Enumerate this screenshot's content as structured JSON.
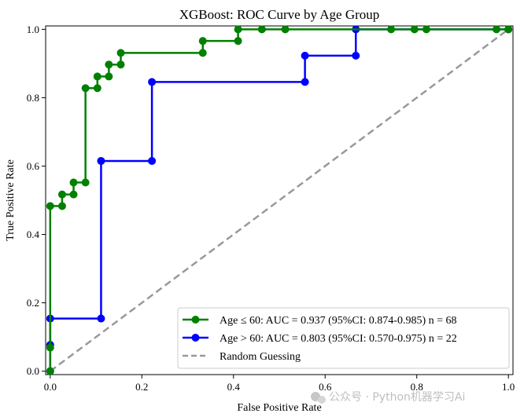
{
  "chart_data": {
    "type": "line",
    "title": "XGBoost: ROC Curve by Age Group",
    "xlabel": "False Positive Rate",
    "ylabel": "True Positive Rate",
    "xlim": [
      -0.01,
      1.01
    ],
    "ylim": [
      -0.01,
      1.01
    ],
    "xticks": [
      0.0,
      0.2,
      0.4,
      0.6,
      0.8,
      1.0
    ],
    "xtick_labels": [
      "0.0",
      "0.2",
      "0.4",
      "0.6",
      "0.8",
      "1.0"
    ],
    "yticks": [
      0.0,
      0.2,
      0.4,
      0.6,
      0.8,
      1.0
    ],
    "ytick_labels": [
      "0.0",
      "0.2",
      "0.4",
      "0.6",
      "0.8",
      "1.0"
    ],
    "legend_position": "bottom-right",
    "series": [
      {
        "name": "Age ≤ 60: AUC = 0.937 (95%CI: 0.874-0.985) n = 68",
        "color": "#008000",
        "marker": "circle",
        "fpr": [
          0.0,
          0.0,
          0.0,
          0.026,
          0.026,
          0.051,
          0.051,
          0.077,
          0.077,
          0.103,
          0.103,
          0.128,
          0.128,
          0.154,
          0.154,
          0.333,
          0.333,
          0.41,
          0.41,
          0.462,
          0.513,
          0.744,
          0.795,
          0.821,
          0.974,
          1.0
        ],
        "tpr": [
          0.0,
          0.069,
          0.483,
          0.483,
          0.517,
          0.517,
          0.552,
          0.552,
          0.828,
          0.828,
          0.862,
          0.862,
          0.897,
          0.897,
          0.931,
          0.931,
          0.966,
          0.966,
          1.0,
          1.0,
          1.0,
          1.0,
          1.0,
          1.0,
          1.0,
          1.0
        ]
      },
      {
        "name": "Age > 60: AUC = 0.803 (95%CI: 0.570-0.975) n = 22",
        "color": "#0000ff",
        "marker": "circle",
        "fpr": [
          0.0,
          0.0,
          0.0,
          0.111,
          0.111,
          0.222,
          0.222,
          0.556,
          0.556,
          0.667,
          0.667,
          1.0
        ],
        "tpr": [
          0.0,
          0.077,
          0.154,
          0.154,
          0.615,
          0.615,
          0.846,
          0.846,
          0.923,
          0.923,
          1.0,
          1.0
        ]
      },
      {
        "name": "Random Guessing",
        "color": "#999999",
        "marker": "none",
        "linestyle": "dashed",
        "fpr": [
          0.0,
          1.0
        ],
        "tpr": [
          0.0,
          1.0
        ]
      }
    ]
  },
  "watermark": "公众号 · Python机器学习Ai"
}
